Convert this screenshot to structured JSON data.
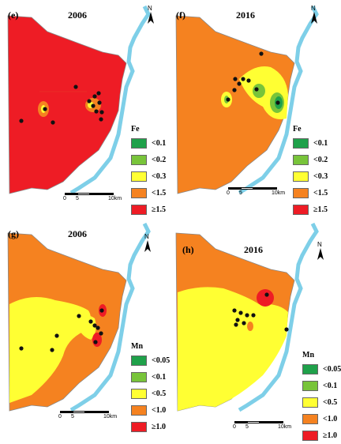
{
  "panels": [
    {
      "label": "(e)",
      "year": "2006",
      "element": "Fe",
      "legend": [
        "<0.1",
        "<0.2",
        "<0.3",
        "<1.5",
        "≥1.5"
      ],
      "scale": [
        "0",
        "5",
        "10km"
      ],
      "north": "N"
    },
    {
      "label": "(f)",
      "year": "2016",
      "element": "Fe",
      "legend": [
        "<0.1",
        "<0.2",
        "<0.3",
        "<1.5",
        "≥1.5"
      ],
      "scale": [
        "0",
        "5",
        "10km"
      ],
      "north": "N"
    },
    {
      "label": "(g)",
      "year": "2006",
      "element": "Mn",
      "legend": [
        "<0.05",
        "<0.1",
        "<0.5",
        "<1.0",
        "≥1.0"
      ],
      "scale": [
        "0",
        "5",
        "10km"
      ],
      "north": "N"
    },
    {
      "label": "(h)",
      "year": "2016",
      "element": "Mn",
      "legend": [
        "<0.05",
        "<0.1",
        "<0.5",
        "<1.0",
        "≥1.0"
      ],
      "scale": [
        "0",
        "5",
        "10km"
      ],
      "north": "N"
    }
  ],
  "colors": {
    "class1": "#1fa14a",
    "class2": "#78c43a",
    "class3": "#ffff33",
    "class4": "#f58220",
    "class5": "#ee1c25",
    "river": "#7ecfe8",
    "point": "#111111"
  }
}
